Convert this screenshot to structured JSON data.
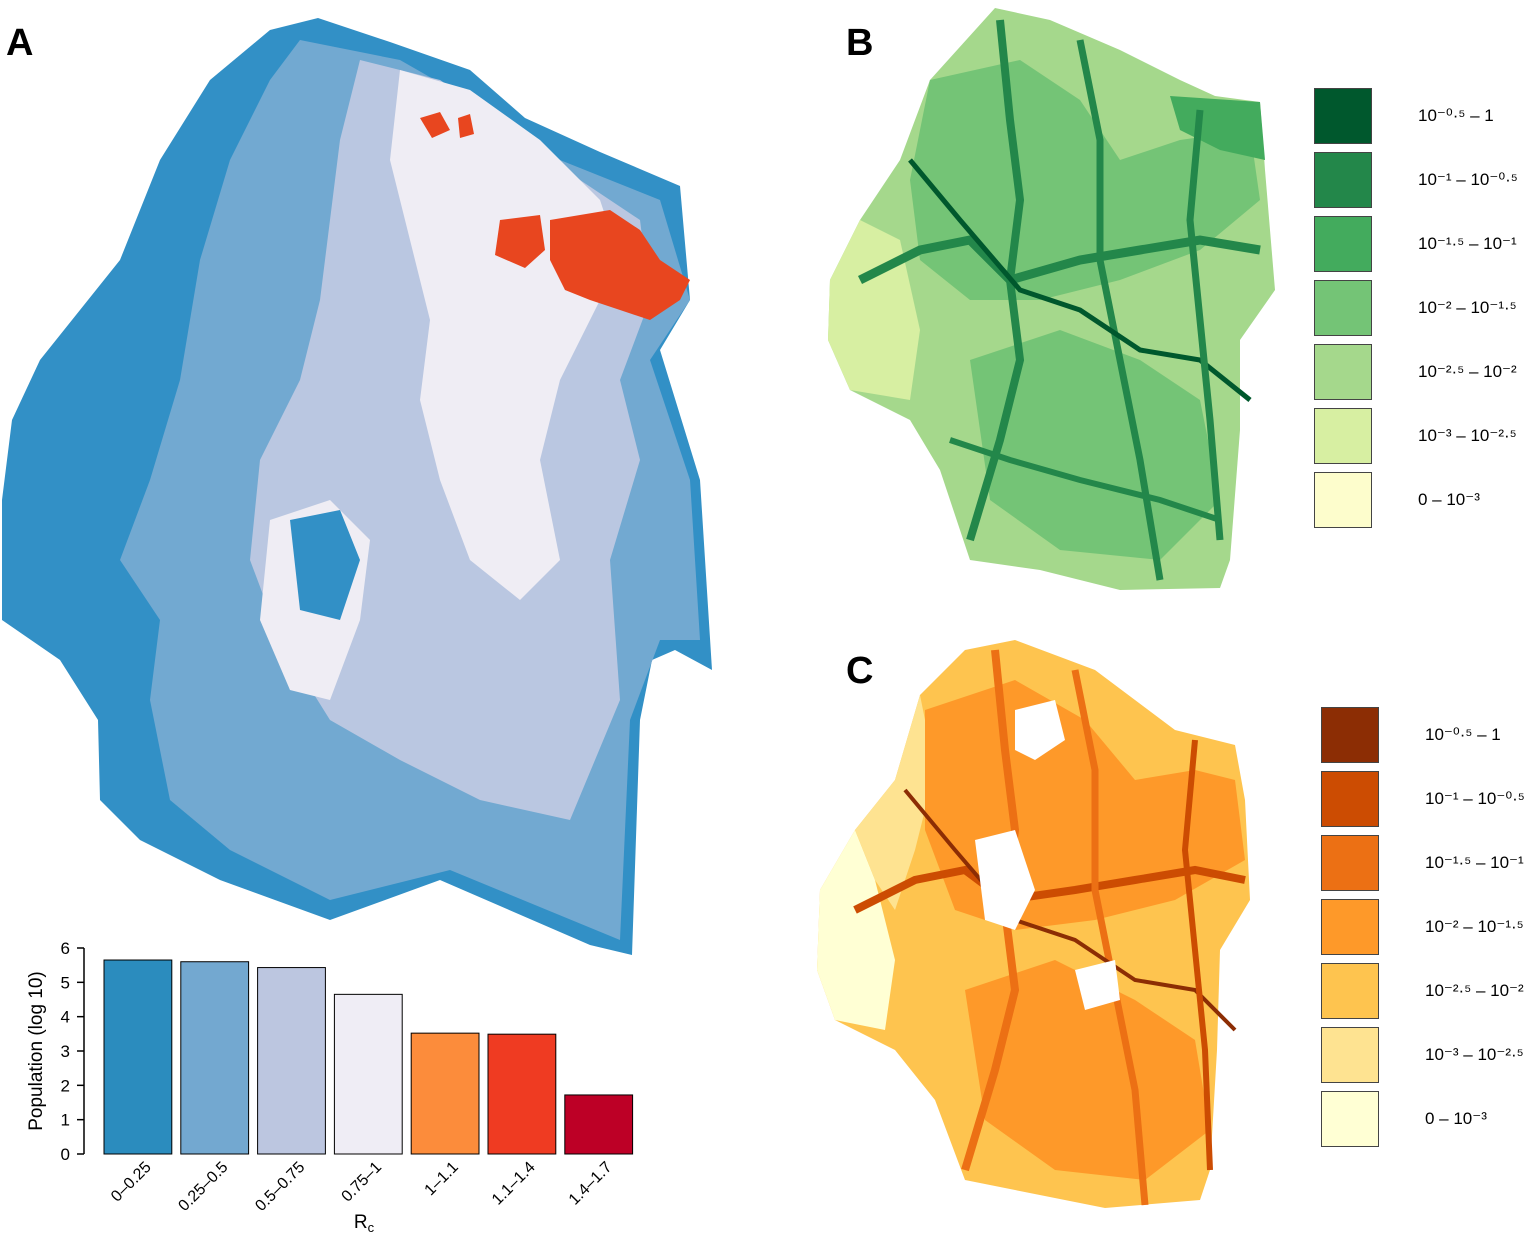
{
  "panels": {
    "a": {
      "label": "A"
    },
    "b": {
      "label": "B"
    },
    "c": {
      "label": "C"
    }
  },
  "legend_b": {
    "colors": [
      "#00582d",
      "#23874a",
      "#43ab5d",
      "#74c476",
      "#a5d88c",
      "#d7efa2",
      "#fdfdcc"
    ],
    "labels": [
      "10⁻⁰·⁵ – 1",
      "10⁻¹ – 10⁻⁰·⁵",
      "10⁻¹·⁵ – 10⁻¹",
      "10⁻² – 10⁻¹·⁵",
      "10⁻²·⁵ – 10⁻²",
      "10⁻³ – 10⁻²·⁵",
      "0 – 10⁻³"
    ]
  },
  "legend_c": {
    "colors": [
      "#8c2d04",
      "#cc4c02",
      "#ec7014",
      "#fe9929",
      "#fec44f",
      "#fee391",
      "#ffffd4"
    ],
    "labels": [
      "10⁻⁰·⁵ – 1",
      "10⁻¹ – 10⁻⁰·⁵",
      "10⁻¹·⁵ – 10⁻¹",
      "10⁻² – 10⁻¹·⁵",
      "10⁻²·⁵ – 10⁻²",
      "10⁻³ – 10⁻²·⁵",
      "0 – 10⁻³"
    ]
  },
  "map_a_colors": {
    "class_0_025": "#3290c6",
    "class_025_05": "#72a9d1",
    "class_05_075": "#bac7e1",
    "class_075_1": "#efedf4",
    "class_high": "#e8461f"
  },
  "chart_data": {
    "type": "bar",
    "categories": [
      "0–0.25",
      "0.25–0.5",
      "0.5–0.75",
      "0.75–1",
      "1–1.1",
      "1.1–1.4",
      "1.4–1.7"
    ],
    "values": [
      5.65,
      5.6,
      5.43,
      4.65,
      3.52,
      3.49,
      1.72
    ],
    "colors": [
      "#2b8cbe",
      "#73a8d0",
      "#bcc6e0",
      "#efedf5",
      "#fc8c3b",
      "#ef3b22",
      "#bd0026"
    ],
    "ylabel": "Population (log 10)",
    "xlabel": "Rc",
    "xlabel_sub": "c",
    "xlabel_main": "R",
    "ylim": [
      0,
      6
    ],
    "yticks": [
      0,
      1,
      2,
      3,
      4,
      5,
      6
    ]
  }
}
